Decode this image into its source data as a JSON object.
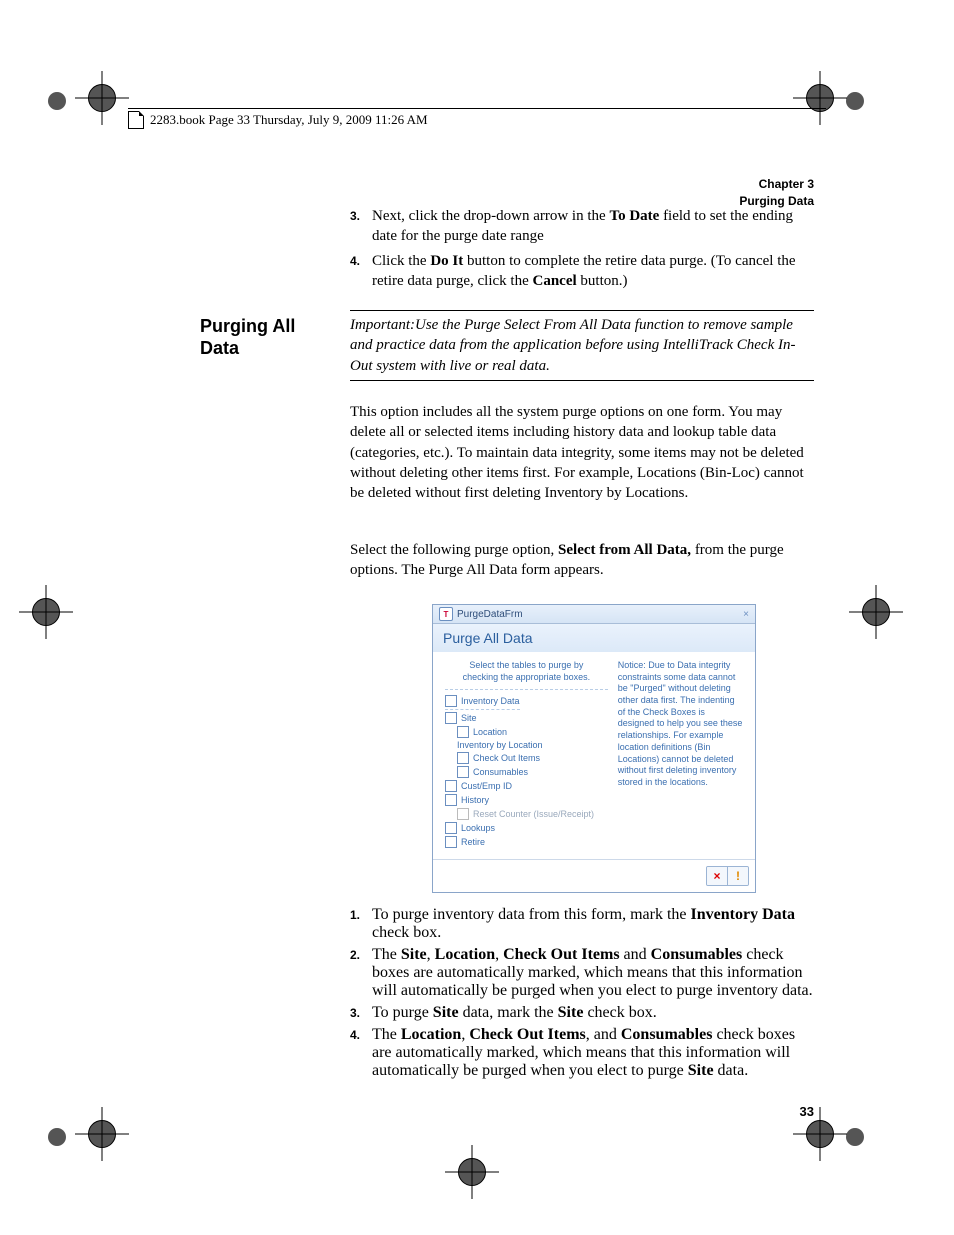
{
  "header": {
    "text": "2283.book  Page 33  Thursday, July 9, 2009  11:26 AM"
  },
  "running_head": {
    "chapter": "Chapter 3",
    "title": "Purging Data"
  },
  "top_steps": [
    {
      "n": "3.",
      "pre": "Next, click the drop-down arrow in the ",
      "b1": "To Date",
      "post": " field to set the ending date for the purge date range"
    },
    {
      "n": "4.",
      "pre": "Click the ",
      "b1": "Do It",
      "mid": " button to complete the retire data purge. (To cancel the retire data purge, click the ",
      "b2": "Cancel",
      "post": " button.)"
    }
  ],
  "section_heading": "Purging All Data",
  "important": "Important:Use the Purge Select From All Data function to remove sample and practice data from the application before using IntelliTrack Check In-Out system with live or real data.",
  "body1": "This option includes all the system purge options on one form. You may delete all or selected items including history data and lookup table data (categories, etc.). To maintain data integrity, some items may not be deleted without deleting other items first. For example, Locations (Bin-Loc) cannot be deleted without first deleting Inventory by Locations.",
  "body2_pre": "Select the following purge option, ",
  "body2_b": "Select from All Data,",
  "body2_post": " from the purge options. The Purge All Data form appears.",
  "dialog": {
    "titlebar": "PurgeDataFrm",
    "subhead": "Purge All Data",
    "instruction": "Select the tables to purge by checking the appropriate boxes.",
    "items": [
      {
        "label": "Inventory Data",
        "indent": 0,
        "cb": true,
        "first": true
      },
      {
        "label": "Site",
        "indent": 0,
        "cb": true
      },
      {
        "label": "Location",
        "indent": 1,
        "cb": true
      },
      {
        "label": "Inventory by Location",
        "indent": 1,
        "cb": false
      },
      {
        "label": "Check Out Items",
        "indent": 1,
        "cb": true
      },
      {
        "label": "Consumables",
        "indent": 1,
        "cb": true
      },
      {
        "label": "Cust/Emp ID",
        "indent": 0,
        "cb": true
      },
      {
        "label": "History",
        "indent": 0,
        "cb": true
      },
      {
        "label": "Reset Counter (Issue/Receipt)",
        "indent": 1,
        "cb": true,
        "disabled": true
      },
      {
        "label": "Lookups",
        "indent": 0,
        "cb": true
      },
      {
        "label": "Retire",
        "indent": 0,
        "cb": true
      }
    ],
    "notice": "Notice: Due to Data integrity constraints some data cannot be \"Purged\" without deleting other data first. The indenting of the Check Boxes is designed to help you see these relationships. For example location definitions (Bin Locations) cannot be deleted without first deleting inventory stored in the  locations.",
    "btn_close": "×",
    "btn_warn": "!"
  },
  "lower_steps": [
    {
      "n": "1.",
      "html": "To purge inventory data from this form, mark the <b>Inventory Data</b> check box."
    },
    {
      "n": "2.",
      "html": "The <b>Site</b>, <b>Location</b>, <b>Check Out Items</b> and <b>Consumables</b> check boxes are automatically marked, which means that this information will automatically be purged when you elect to purge inventory data."
    },
    {
      "n": "3.",
      "html": "To purge <b>Site</b> data, mark the <b>Site</b> check box."
    },
    {
      "n": "4.",
      "html": "The <b>Location</b>, <b>Check Out Items</b>, and <b>Consumables</b> check boxes are automatically marked, which means that this information will automatically be purged when you elect to purge <b>Site</b> data."
    }
  ],
  "page_number": "33"
}
